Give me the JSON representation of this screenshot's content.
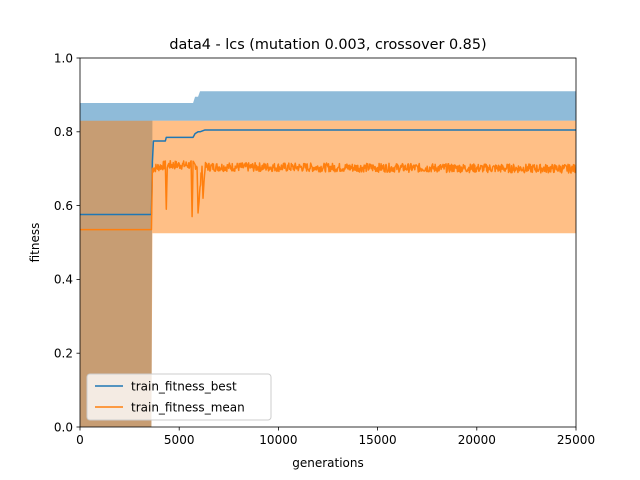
{
  "chart_data": {
    "type": "line",
    "title": "data4 - lcs (mutation 0.003, crossover 0.85)",
    "xlabel": "generations",
    "ylabel": "fitness",
    "xlim": [
      0,
      25000
    ],
    "ylim": [
      0,
      1.0
    ],
    "xticks": [
      0,
      5000,
      10000,
      15000,
      20000,
      25000
    ],
    "xtick_labels": [
      "0",
      "5000",
      "10000",
      "15000",
      "20000",
      "25000"
    ],
    "yticks": [
      0.0,
      0.2,
      0.4,
      0.6,
      0.8,
      1.0
    ],
    "ytick_labels": [
      "0.0",
      "0.2",
      "0.4",
      "0.6",
      "0.8",
      "1.0"
    ],
    "grid": false,
    "legend_position": "lower-left",
    "series": [
      {
        "name": "train_fitness_best",
        "color": "#1f77b4",
        "x": [
          0,
          3600,
          3650,
          3700,
          3750,
          4300,
          4350,
          5700,
          5800,
          5950,
          6050,
          6300,
          25000
        ],
        "y": [
          0.576,
          0.576,
          0.72,
          0.775,
          0.775,
          0.775,
          0.785,
          0.785,
          0.795,
          0.8,
          0.8,
          0.805,
          0.805
        ],
        "band_lower": [
          0.0,
          0.0,
          0.83,
          0.83,
          0.83,
          0.83,
          0.83,
          0.83,
          0.83,
          0.83,
          0.83,
          0.83,
          0.83
        ],
        "band_upper": [
          0.878,
          0.878,
          0.878,
          0.878,
          0.878,
          0.878,
          0.878,
          0.878,
          0.895,
          0.895,
          0.91,
          0.91,
          0.91
        ]
      },
      {
        "name": "train_fitness_mean",
        "color": "#ff7f0e",
        "x": [
          0,
          3600,
          3650,
          4300,
          4350,
          4400,
          5600,
          5650,
          5700,
          5900,
          5950,
          6150,
          6200,
          6300,
          25000
        ],
        "y": [
          0.535,
          0.535,
          0.7,
          0.71,
          0.59,
          0.71,
          0.71,
          0.57,
          0.71,
          0.71,
          0.58,
          0.71,
          0.62,
          0.705,
          0.7
        ],
        "noise_amplitude": 0.012,
        "band_lower": [
          0.0,
          0.0,
          0.525,
          0.525,
          0.525,
          0.525,
          0.525,
          0.525,
          0.525,
          0.525,
          0.525,
          0.525,
          0.525,
          0.525,
          0.525
        ],
        "band_upper": [
          0.83,
          0.83,
          0.83,
          0.83,
          0.83,
          0.83,
          0.83,
          0.83,
          0.83,
          0.83,
          0.83,
          0.83,
          0.83,
          0.83,
          0.83
        ]
      }
    ]
  }
}
